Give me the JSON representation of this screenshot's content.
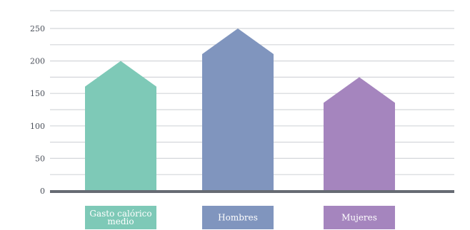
{
  "chart_data": {
    "type": "bar",
    "shape": "house-pentagon",
    "categories": [
      "Gasto calórico medio",
      "Hombres",
      "Mujeres"
    ],
    "category_label_lines": [
      [
        "Gasto calórico",
        "medio"
      ],
      [
        "Hombres"
      ],
      [
        "Mujeres"
      ]
    ],
    "values": [
      200,
      250,
      175
    ],
    "ylim": [
      0,
      270
    ],
    "yticks": [
      0,
      50,
      100,
      150,
      200,
      250
    ],
    "ytick_labels": [
      "0",
      "50",
      "100",
      "150",
      "200",
      "250"
    ],
    "grid": true,
    "grid_minor_step": 25,
    "colors": [
      "#7ec9b7",
      "#8095be",
      "#a585be"
    ],
    "axis_color": "#666b73",
    "grid_color": "#d4d6da",
    "title": "",
    "xlabel": "",
    "ylabel": ""
  }
}
